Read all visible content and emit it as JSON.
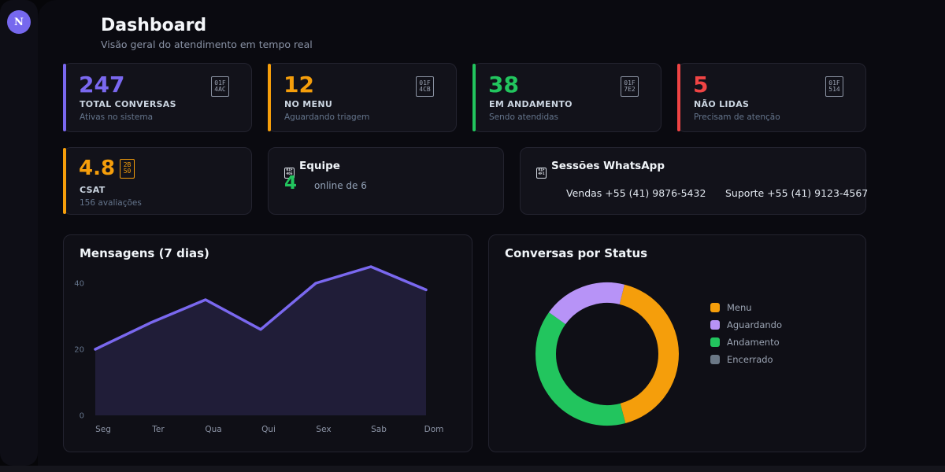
{
  "page": {
    "title": "Dashboard",
    "subtitle": "Visão geral do atendimento em tempo real"
  },
  "sidebar": {
    "avatar_letter": "N"
  },
  "colors": {
    "accent_purple": "#7a68ef",
    "accent_orange": "#f59e0b",
    "accent_green": "#22c55e",
    "accent_red": "#ef4444",
    "online_dot": "#22c55e",
    "avatar_bg": "#7668ee"
  },
  "stats": [
    {
      "value": "247",
      "label": "TOTAL CONVERSAS",
      "sub": "Ativas no sistema",
      "accent": "#7a68ef",
      "icon": "speech-balloon-emoji-tofu",
      "icon_hex": [
        "01F",
        "4AC"
      ]
    },
    {
      "value": "12",
      "label": "NO MENU",
      "sub": "Aguardando triagem",
      "accent": "#f59e0b",
      "icon": "clipboard-emoji-tofu",
      "icon_hex": [
        "01F",
        "4CB"
      ]
    },
    {
      "value": "38",
      "label": "EM ANDAMENTO",
      "sub": "Sendo atendidas",
      "accent": "#22c55e",
      "icon": "green-circle-emoji-tofu",
      "icon_hex": [
        "01F",
        "7E2"
      ]
    },
    {
      "value": "5",
      "label": "NÃO LIDAS",
      "sub": "Precisam de atenção",
      "accent": "#ef4444",
      "icon": "bell-emoji-tofu",
      "icon_hex": [
        "01F",
        "514"
      ]
    }
  ],
  "csat": {
    "value": "4.8",
    "label": "CSAT",
    "sub": "156 avaliações",
    "accent": "#f59e0b",
    "star_hex": [
      "2B",
      "50"
    ]
  },
  "team": {
    "title": "Equipe",
    "icon_hex": [
      "01F",
      "465"
    ],
    "online_count": "4",
    "online_label": "online de 6",
    "accent": "#22c55e"
  },
  "sessions": {
    "title": "Sessões WhatsApp",
    "icon_hex": [
      "01F",
      "4F1"
    ],
    "items": [
      "Vendas +55 (41) 9876-5432",
      "Suporte +55 (41) 9123-4567"
    ]
  },
  "chart_data": [
    {
      "type": "area",
      "title": "Mensagens (7 dias)",
      "categories": [
        "Seg",
        "Ter",
        "Qua",
        "Qui",
        "Sex",
        "Sab",
        "Dom"
      ],
      "values": [
        20,
        28,
        35,
        26,
        40,
        45,
        38
      ],
      "yticks": [
        0,
        20,
        40
      ],
      "ylim": [
        0,
        48
      ],
      "xlabel": "",
      "ylabel": "",
      "grid": false,
      "legend_position": "none",
      "color": "#7a68ef",
      "fill": "rgba(122,104,239,0.16)"
    },
    {
      "type": "donut",
      "title": "Conversas por Status",
      "categories": [
        "Menu",
        "Aguardando",
        "Andamento",
        "Encerrado"
      ],
      "values": [
        42,
        19,
        39,
        0
      ],
      "unit": "percent-approx",
      "colors": [
        "#f59e0b",
        "#b793f7",
        "#22c55e",
        "#6b7886"
      ],
      "legend_position": "right",
      "start_angle": 14,
      "draw_order": [
        0,
        2,
        1,
        3
      ]
    }
  ]
}
